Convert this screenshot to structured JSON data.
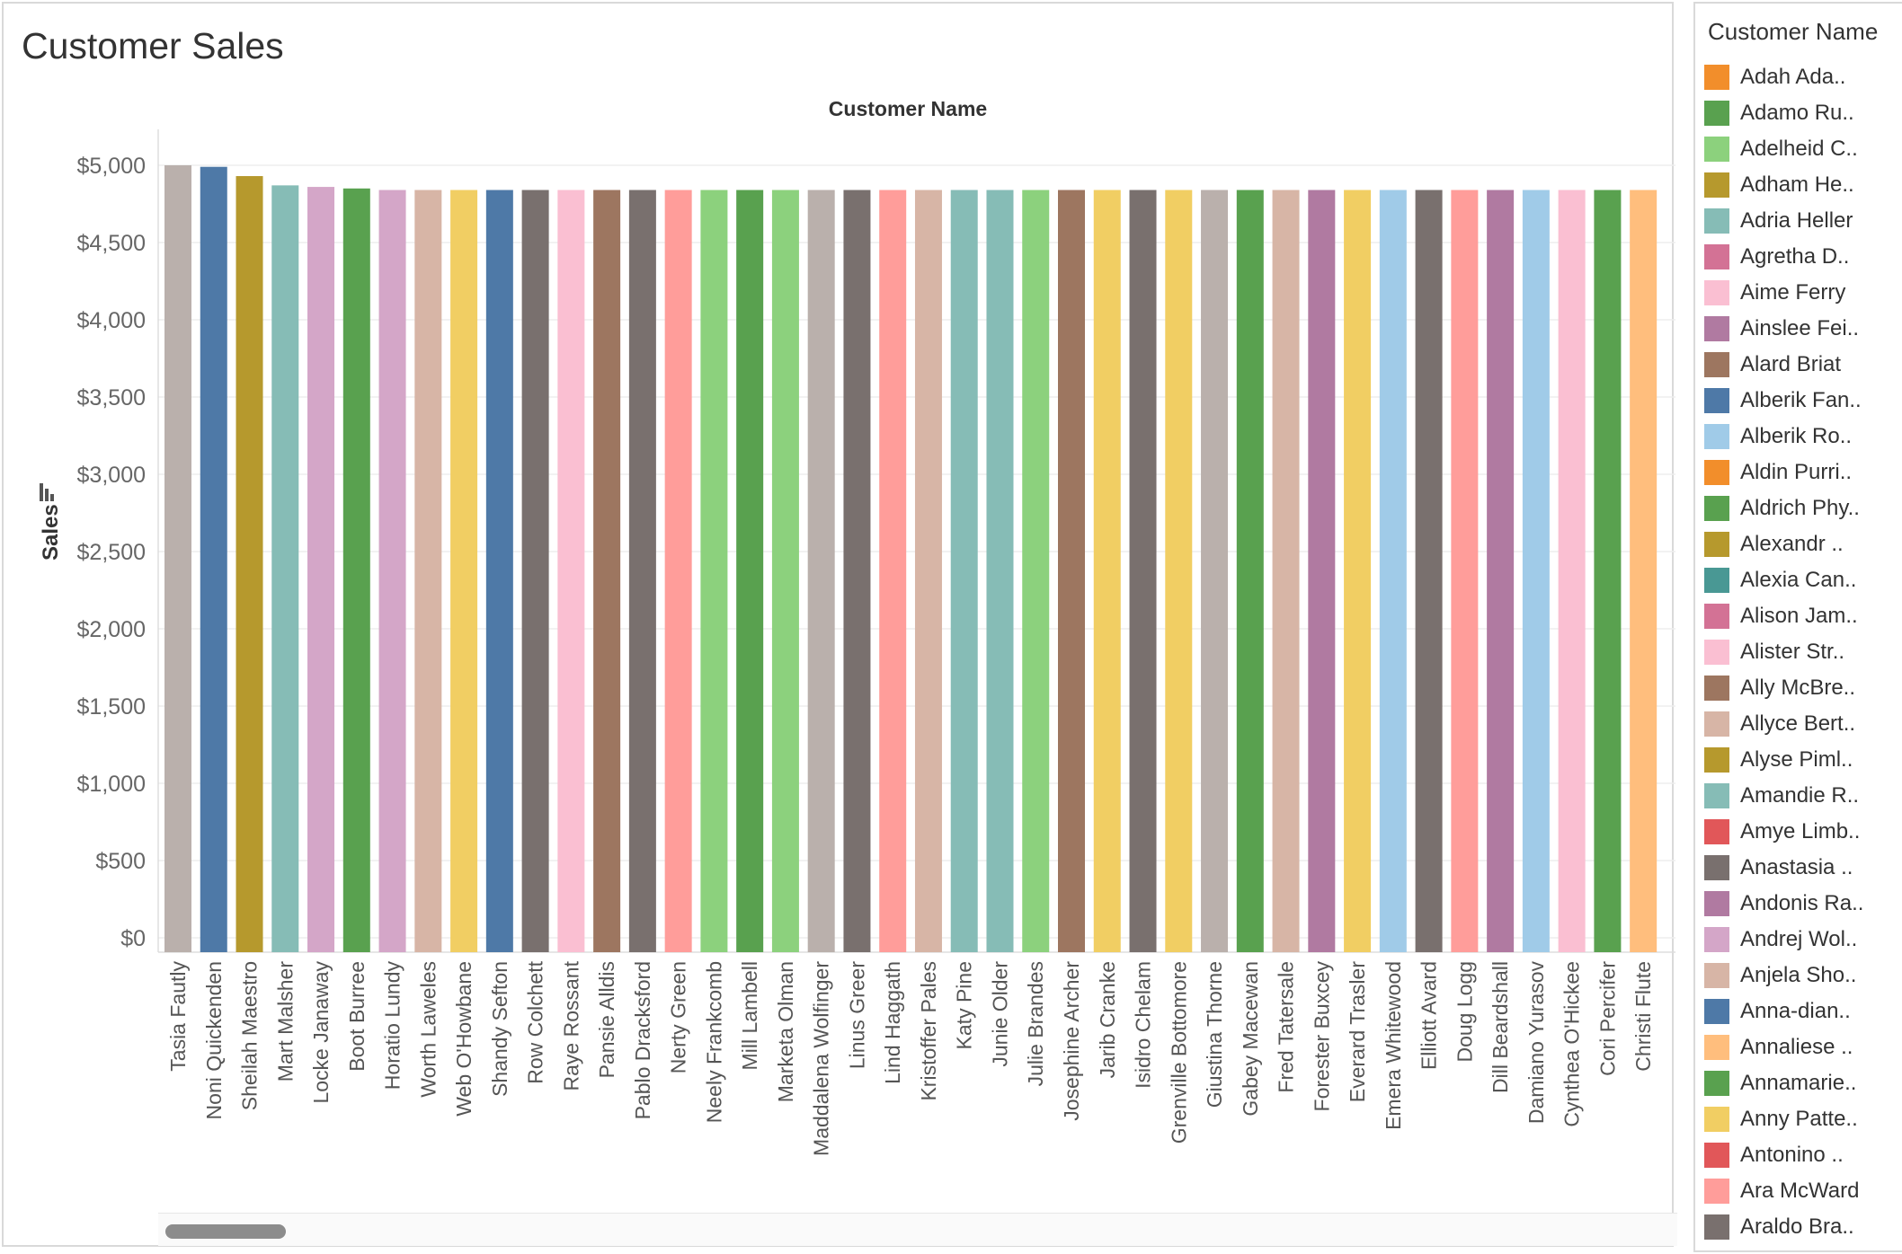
{
  "page": {
    "title": "Customer Sales"
  },
  "legend": {
    "title": "Customer Name",
    "items": [
      {
        "label": "Adah Ada..",
        "color": "#f28e2b"
      },
      {
        "label": "Adamo Ru..",
        "color": "#59a14f"
      },
      {
        "label": "Adelheid C..",
        "color": "#8cd17d"
      },
      {
        "label": "Adham He..",
        "color": "#b6992d"
      },
      {
        "label": "Adria Heller",
        "color": "#86bcb6"
      },
      {
        "label": "Agretha D..",
        "color": "#d37295"
      },
      {
        "label": "Aime Ferry",
        "color": "#fabfd2"
      },
      {
        "label": "Ainslee Fei..",
        "color": "#b07aa1"
      },
      {
        "label": "Alard Briat",
        "color": "#9d7660"
      },
      {
        "label": "Alberik Fan..",
        "color": "#4e79a7"
      },
      {
        "label": "Alberik Ro..",
        "color": "#a0cbe8"
      },
      {
        "label": "Aldin Purri..",
        "color": "#f28e2b"
      },
      {
        "label": "Aldrich Phy..",
        "color": "#59a14f"
      },
      {
        "label": "Alexandr ..",
        "color": "#b6992d"
      },
      {
        "label": "Alexia Can..",
        "color": "#499894"
      },
      {
        "label": "Alison Jam..",
        "color": "#d37295"
      },
      {
        "label": "Alister Str..",
        "color": "#fabfd2"
      },
      {
        "label": "Ally McBre..",
        "color": "#9d7660"
      },
      {
        "label": "Allyce Bert..",
        "color": "#d7b5a6"
      },
      {
        "label": "Alyse Piml..",
        "color": "#b6992d"
      },
      {
        "label": "Amandie R..",
        "color": "#86bcb6"
      },
      {
        "label": "Amye Limb..",
        "color": "#e15759"
      },
      {
        "label": "Anastasia ..",
        "color": "#79706e"
      },
      {
        "label": "Andonis Ra..",
        "color": "#b07aa1"
      },
      {
        "label": "Andrej Wol..",
        "color": "#d4a6c8"
      },
      {
        "label": "Anjela Sho..",
        "color": "#d7b5a6"
      },
      {
        "label": "Anna-dian..",
        "color": "#4e79a7"
      },
      {
        "label": "Annaliese ..",
        "color": "#ffbe7d"
      },
      {
        "label": "Annamarie..",
        "color": "#59a14f"
      },
      {
        "label": "Anny Patte..",
        "color": "#f1ce63"
      },
      {
        "label": "Antonino ..",
        "color": "#e15759"
      },
      {
        "label": "Ara McWard",
        "color": "#ff9d9a"
      },
      {
        "label": "Araldo Bra..",
        "color": "#79706e"
      }
    ]
  },
  "chart_data": {
    "type": "bar",
    "title": "Customer Name",
    "xlabel": "",
    "ylabel": "Sales",
    "ylim": [
      0,
      5000
    ],
    "yticks": [
      "$0",
      "$500",
      "$1,000",
      "$1,500",
      "$2,000",
      "$2,500",
      "$3,000",
      "$3,500",
      "$4,000",
      "$4,500",
      "$5,000"
    ],
    "grid": true,
    "categories": [
      "Tasia Fautly",
      "Noni Quickenden",
      "Sheilah Maestro",
      "Mart Malsher",
      "Locke Janaway",
      "Boot Burree",
      "Horatio Lundy",
      "Worth Laweles",
      "Web O'Howbane",
      "Shandy Sefton",
      "Row Colchett",
      "Raye Rossant",
      "Pansie Alldis",
      "Pablo Dracksford",
      "Nerty Green",
      "Neely Frankcomb",
      "Mill Lambell",
      "Marketa Olman",
      "Maddalena Wolfinger",
      "Linus Greer",
      "Lind Haggath",
      "Kristoffer Pales",
      "Katy Pine",
      "Junie Older",
      "Julie Brandes",
      "Josephine Archer",
      "Jarib Cranke",
      "Isidro Chelam",
      "Grenville Bottomore",
      "Giustina Thorne",
      "Gabey Macewan",
      "Fred Tatersale",
      "Forester Buxcey",
      "Everard Trasler",
      "Emera Whitewood",
      "Elliott Avard",
      "Doug Logg",
      "Dill Beardshall",
      "Damiano Yurasov",
      "Cynthea O'Hickee",
      "Cori Percifer",
      "Christi Flute"
    ],
    "values": [
      5000,
      4990,
      4930,
      4870,
      4860,
      4850,
      4840,
      4840,
      4840,
      4840,
      4840,
      4840,
      4840,
      4840,
      4840,
      4840,
      4840,
      4840,
      4840,
      4840,
      4840,
      4840,
      4840,
      4840,
      4840,
      4840,
      4840,
      4840,
      4840,
      4840,
      4840,
      4840,
      4840,
      4840,
      4840,
      4840,
      4840,
      4840,
      4840,
      4840,
      4840,
      4840
    ],
    "colors": [
      "#bab0ac",
      "#4e79a7",
      "#b6992d",
      "#86bcb6",
      "#d4a6c8",
      "#59a14f",
      "#d4a6c8",
      "#d7b5a6",
      "#f1ce63",
      "#4e79a7",
      "#79706e",
      "#fabfd2",
      "#9d7660",
      "#79706e",
      "#ff9d9a",
      "#8cd17d",
      "#59a14f",
      "#8cd17d",
      "#bab0ac",
      "#79706e",
      "#ff9d9a",
      "#d7b5a6",
      "#86bcb6",
      "#86bcb6",
      "#8cd17d",
      "#9d7660",
      "#f1ce63",
      "#79706e",
      "#f1ce63",
      "#bab0ac",
      "#59a14f",
      "#d7b5a6",
      "#b07aa1",
      "#f1ce63",
      "#a0cbe8",
      "#79706e",
      "#ff9d9a",
      "#b07aa1",
      "#a0cbe8",
      "#fabfd2",
      "#59a14f",
      "#ffbe7d"
    ]
  }
}
